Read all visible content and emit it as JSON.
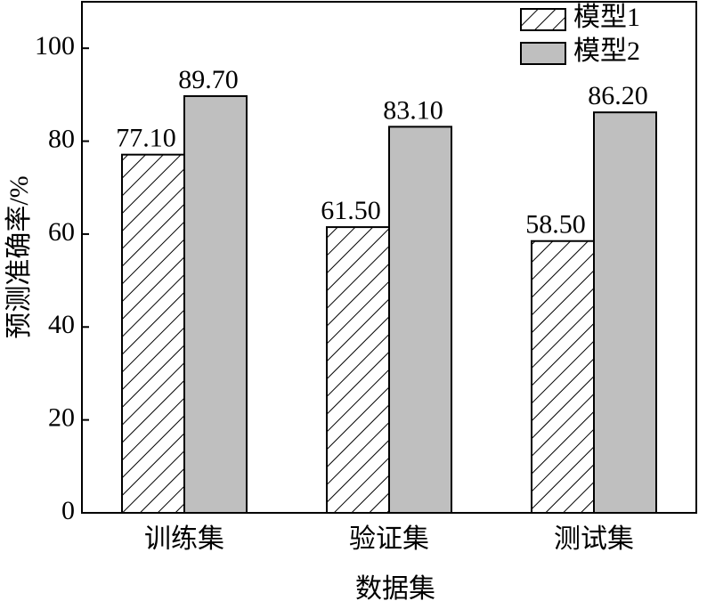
{
  "chart_data": {
    "type": "bar",
    "xlabel": "数据集",
    "ylabel": "预测准确率/%",
    "categories": [
      "训练集",
      "验证集",
      "测试集"
    ],
    "series": [
      {
        "name": "模型1",
        "color": "#ffffff",
        "hatch": true,
        "values": [
          77.1,
          61.5,
          58.5
        ],
        "value_labels": [
          "77.10",
          "61.50",
          "58.50"
        ]
      },
      {
        "name": "模型2",
        "color": "#bfbfbf",
        "hatch": false,
        "values": [
          89.7,
          83.1,
          86.2
        ],
        "value_labels": [
          "89.70",
          "83.10",
          "86.20"
        ]
      }
    ],
    "ylim": [
      0,
      110
    ],
    "yticks": [
      0,
      20,
      40,
      60,
      80,
      100
    ],
    "grid": false,
    "legend": "upper right"
  }
}
